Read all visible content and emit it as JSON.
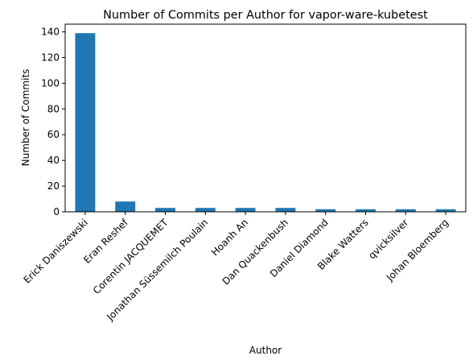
{
  "chart_data": {
    "type": "bar",
    "title": "Number of Commits per Author for vapor-ware-kubetest",
    "xlabel": "Author",
    "ylabel": "Number of Commits",
    "categories": [
      "Erick Daniszewski",
      "Eran Reshef",
      "Corentin JACQUEMET",
      "Jonathan Süssemilch Poulain",
      "Hoanh An",
      "Dan Quackenbush",
      "Daniel Diamond",
      "Blake Watters",
      "qvicksilver",
      "Johan Bloemberg"
    ],
    "values": [
      139,
      8,
      3,
      3,
      3,
      3,
      2,
      2,
      2,
      2
    ],
    "ylim": [
      0,
      146
    ],
    "yticks": [
      0,
      20,
      40,
      60,
      80,
      100,
      120,
      140
    ],
    "grid": false,
    "legend": "none",
    "bar_color": "#1f77b4"
  }
}
